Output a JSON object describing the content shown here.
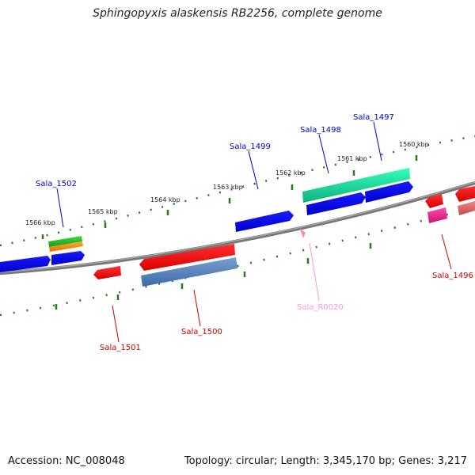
{
  "title": "Sphingopyxis alaskensis RB2256, complete genome",
  "footer": {
    "accession": "Accession: NC_008048",
    "summary": "Topology: circular; Length: 3,345,170 bp; Genes: 3,217"
  },
  "colors": {
    "forward_label": "#0000cc",
    "reverse_label": "#cc0000",
    "rna_label": "#ff99cc",
    "tick": "#2a7a1a",
    "backbone": "#808080"
  },
  "scale_labels": [
    "1566 kbp",
    "1565 kbp",
    "1564 kbp",
    "1563 kbp",
    "1562 kbp",
    "1561 kbp",
    "1560 kbp"
  ],
  "gene_labels": [
    {
      "id": "Sala_1502",
      "strand": "forward"
    },
    {
      "id": "Sala_1499",
      "strand": "forward"
    },
    {
      "id": "Sala_1498",
      "strand": "forward"
    },
    {
      "id": "Sala_1497",
      "strand": "forward"
    },
    {
      "id": "Sala_1501",
      "strand": "reverse"
    },
    {
      "id": "Sala_1500",
      "strand": "reverse"
    },
    {
      "id": "Sala_R0020",
      "strand": "rna"
    },
    {
      "id": "Sala_1496",
      "strand": "reverse"
    }
  ]
}
